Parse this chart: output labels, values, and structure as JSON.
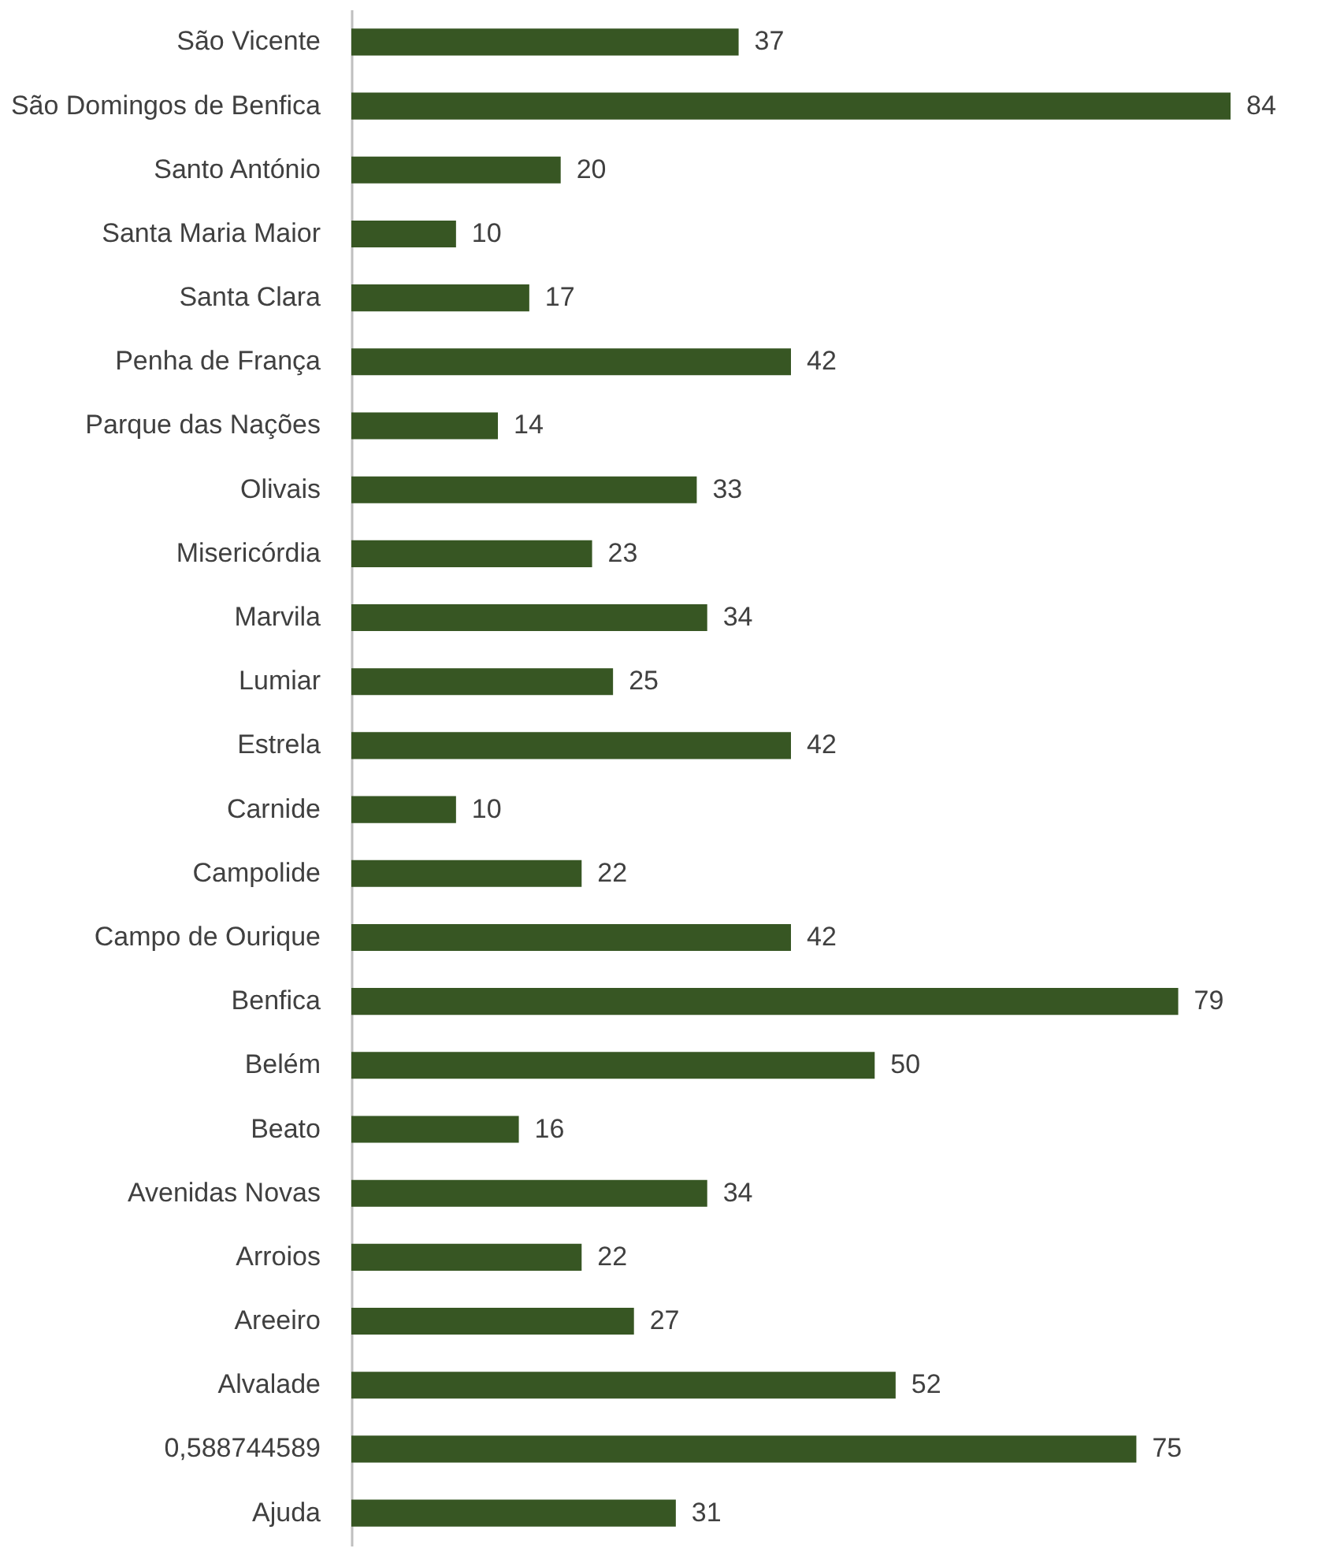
{
  "chart_data": {
    "type": "bar",
    "orientation": "horizontal",
    "tick_labels": "y",
    "data_labels": true,
    "color": "#375623",
    "categories": [
      "São Vicente",
      "São Domingos de Benfica",
      "Santo António",
      "Santa Maria Maior",
      "Santa Clara",
      "Penha de França",
      "Parque das Nações",
      "Olivais",
      "Misericórdia",
      "Marvila",
      "Lumiar",
      "Estrela",
      "Carnide",
      "Campolide",
      "Campo de Ourique",
      "Benfica",
      "Belém",
      "Beato",
      "Avenidas Novas",
      "Arroios",
      "Areeiro",
      "Alvalade",
      "0,588744589",
      "Ajuda"
    ],
    "values": [
      37,
      84,
      20,
      10,
      17,
      42,
      14,
      33,
      23,
      34,
      25,
      42,
      10,
      22,
      42,
      79,
      50,
      16,
      34,
      22,
      27,
      52,
      75,
      31
    ]
  }
}
